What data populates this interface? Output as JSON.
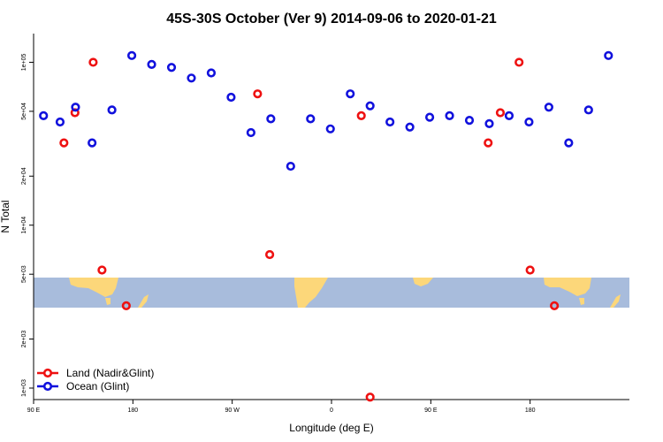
{
  "chart_data": {
    "type": "scatter",
    "title": "45S-30S October (Ver 9)   2014-09-06 to 2020-01-21",
    "xlabel": "Longitude (deg E)",
    "ylabel": "N Total",
    "x_scale": "linear",
    "y_scale": "log",
    "xlim": [
      90,
      630
    ],
    "ylim": [
      850,
      150000
    ],
    "x_ticks": [
      {
        "value": 90,
        "label": "90 E"
      },
      {
        "value": 180,
        "label": "180"
      },
      {
        "value": 270,
        "label": "90 W"
      },
      {
        "value": 360,
        "label": "0"
      },
      {
        "value": 450,
        "label": "90 E"
      },
      {
        "value": 540,
        "label": "180"
      }
    ],
    "y_ticks": [
      {
        "value": 1000,
        "label": "1e+03"
      },
      {
        "value": 2000,
        "label": "2e+03"
      },
      {
        "value": 5000,
        "label": "5e+03"
      },
      {
        "value": 10000,
        "label": "1e+04"
      },
      {
        "value": 20000,
        "label": "2e+04"
      },
      {
        "value": 50000,
        "label": "5e+04"
      },
      {
        "value": 100000,
        "label": "1e+05"
      }
    ],
    "map_strip": {
      "ocean_color": "#a8bcdc",
      "land_color": "#fcd77a"
    },
    "legend_position": "bottom-left",
    "series": [
      {
        "name": "Land (Nadir&Glint)",
        "color": "#ee1111",
        "points": [
          [
            117.5,
            32000
          ],
          [
            127.5,
            49000
          ],
          [
            144,
            100000
          ],
          [
            152,
            5300
          ],
          [
            174,
            3200
          ],
          [
            293,
            64000
          ],
          [
            304,
            6600
          ],
          [
            387,
            47000
          ],
          [
            395,
            880
          ],
          [
            502,
            32000
          ],
          [
            513,
            49000
          ],
          [
            530,
            100000
          ],
          [
            540,
            5300
          ],
          [
            562,
            3200
          ]
        ]
      },
      {
        "name": "Ocean (Glint)",
        "color": "#1111dd",
        "points": [
          [
            99,
            47000
          ],
          [
            114,
            43000
          ],
          [
            128,
            53000
          ],
          [
            143,
            32000
          ],
          [
            161,
            51000
          ],
          [
            179,
            110000
          ],
          [
            197,
            97000
          ],
          [
            215,
            93000
          ],
          [
            233,
            80000
          ],
          [
            251,
            86000
          ],
          [
            269,
            61000
          ],
          [
            287,
            37000
          ],
          [
            305,
            45000
          ],
          [
            323,
            23000
          ],
          [
            341,
            45000
          ],
          [
            359,
            39000
          ],
          [
            377,
            64000
          ],
          [
            395,
            54000
          ],
          [
            413,
            43000
          ],
          [
            431,
            40000
          ],
          [
            449,
            46000
          ],
          [
            467,
            47000
          ],
          [
            485,
            44000
          ],
          [
            503,
            42000
          ],
          [
            521,
            47000
          ],
          [
            539,
            43000
          ],
          [
            557,
            53000
          ],
          [
            575,
            32000
          ],
          [
            593,
            51000
          ],
          [
            611,
            110000
          ]
        ]
      }
    ]
  }
}
